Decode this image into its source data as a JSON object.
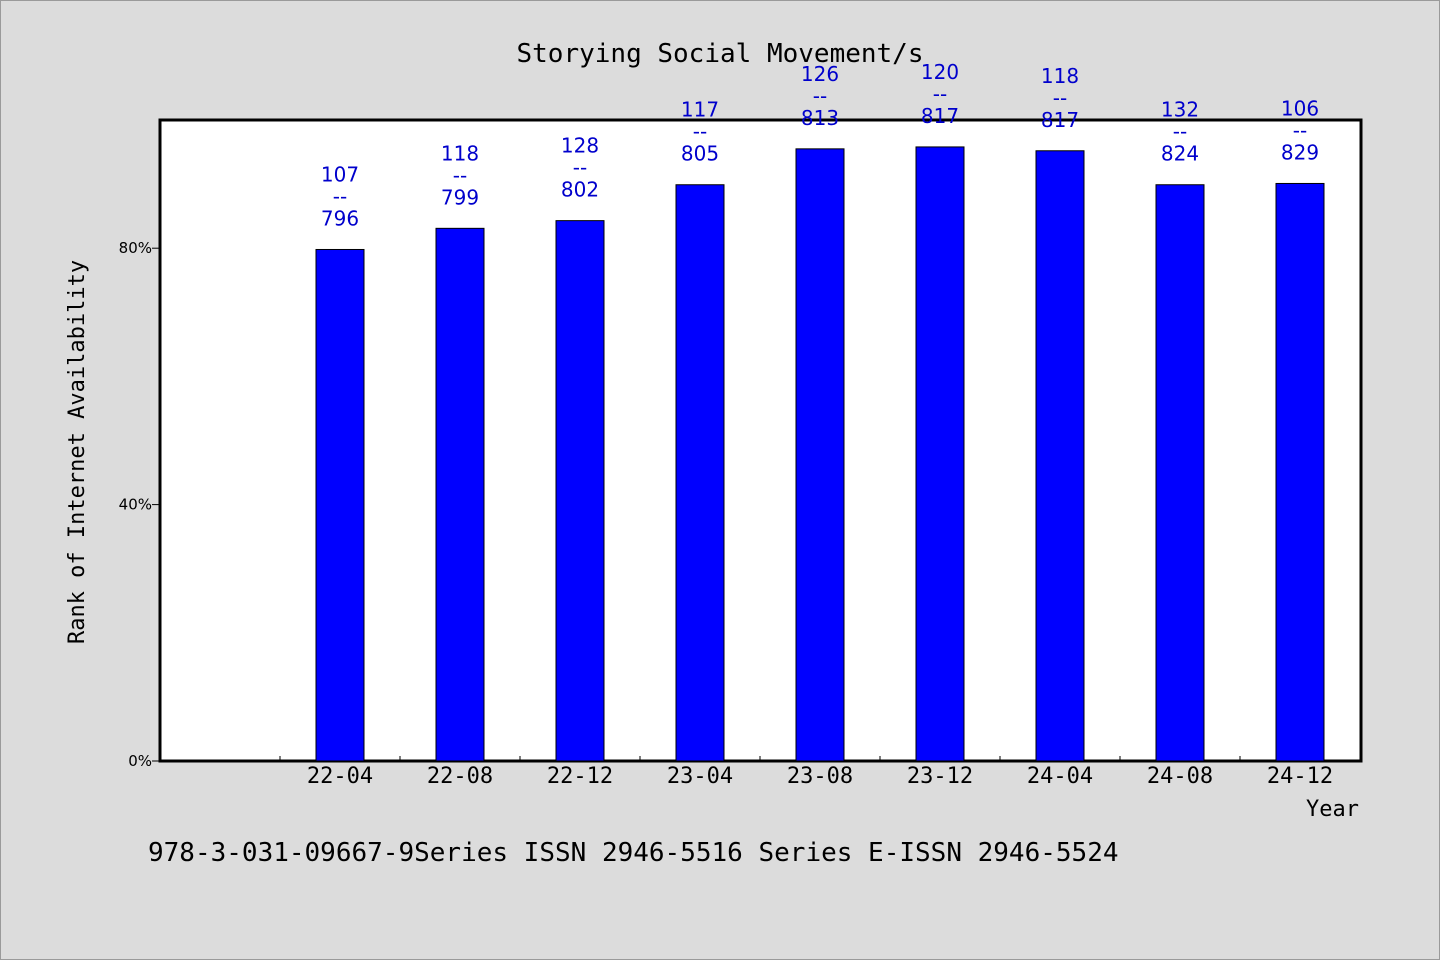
{
  "chart_data": {
    "type": "bar",
    "title": "Storying Social Movement/s",
    "xlabel": "Year",
    "ylabel": "Rank of Internet Availability",
    "categories": [
      "22-04",
      "22-08",
      "22-12",
      "23-04",
      "23-08",
      "23-12",
      "24-04",
      "24-08",
      "24-12"
    ],
    "values": [
      79.8,
      83.1,
      84.3,
      89.9,
      95.5,
      95.8,
      95.2,
      89.9,
      90.1
    ],
    "data_labels": [
      {
        "top": "107",
        "sep": "--",
        "bottom": "796"
      },
      {
        "top": "118",
        "sep": "--",
        "bottom": "799"
      },
      {
        "top": "128",
        "sep": "--",
        "bottom": "802"
      },
      {
        "top": "117",
        "sep": "--",
        "bottom": "805"
      },
      {
        "top": "126",
        "sep": "--",
        "bottom": "813"
      },
      {
        "top": "120",
        "sep": "--",
        "bottom": "817"
      },
      {
        "top": "118",
        "sep": "--",
        "bottom": "817"
      },
      {
        "top": "132",
        "sep": "--",
        "bottom": "824"
      },
      {
        "top": "106",
        "sep": "--",
        "bottom": "829"
      }
    ],
    "yticks": [
      {
        "value": 0,
        "label": "0%"
      },
      {
        "value": 40,
        "label": "40%"
      },
      {
        "value": 80,
        "label": "80%"
      }
    ],
    "ylim": [
      0,
      100
    ],
    "grid": false,
    "bar_color": "#0000ff",
    "label_color": "#0000cc"
  },
  "footer": {
    "text": "978-3-031-09667-9Series ISSN 2946-5516 Series E-ISSN 2946-5524"
  }
}
